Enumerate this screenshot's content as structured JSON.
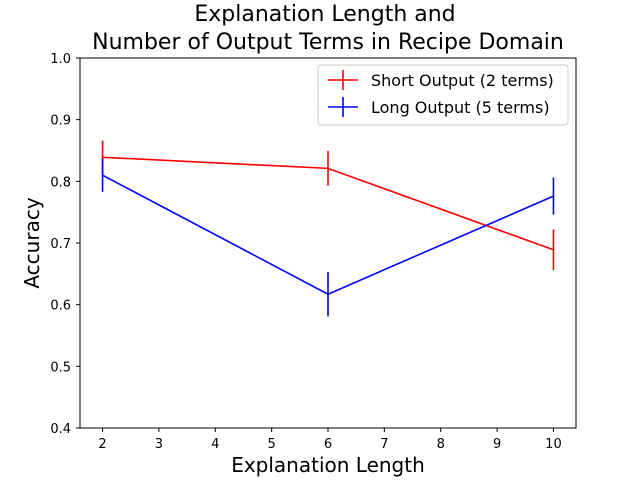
{
  "chart_data": {
    "type": "line",
    "title_lines": [
      "Explanation Length and",
      "Number of Output Terms in Recipe Domain"
    ],
    "xlabel": "Explanation Length",
    "ylabel": "Accuracy",
    "x_ticks": [
      "2",
      "3",
      "4",
      "5",
      "6",
      "7",
      "8",
      "9",
      "10"
    ],
    "y_ticks": [
      "0.4",
      "0.5",
      "0.6",
      "0.7",
      "0.8",
      "0.9",
      "1.0"
    ],
    "xlim": [
      1.6,
      10.4
    ],
    "ylim": [
      0.4,
      1.0
    ],
    "grid": false,
    "legend_position": "top-right",
    "series": [
      {
        "name": "Short Output (2 terms)",
        "color": "#ff0000",
        "x": [
          2,
          6,
          10
        ],
        "y": [
          0.839,
          0.821,
          0.689
        ],
        "yerr": [
          0.027,
          0.028,
          0.033
        ]
      },
      {
        "name": "Long Output (5 terms)",
        "color": "#0000ff",
        "x": [
          2,
          6,
          10
        ],
        "y": [
          0.81,
          0.617,
          0.776
        ],
        "yerr": [
          0.027,
          0.036,
          0.03
        ]
      }
    ]
  }
}
